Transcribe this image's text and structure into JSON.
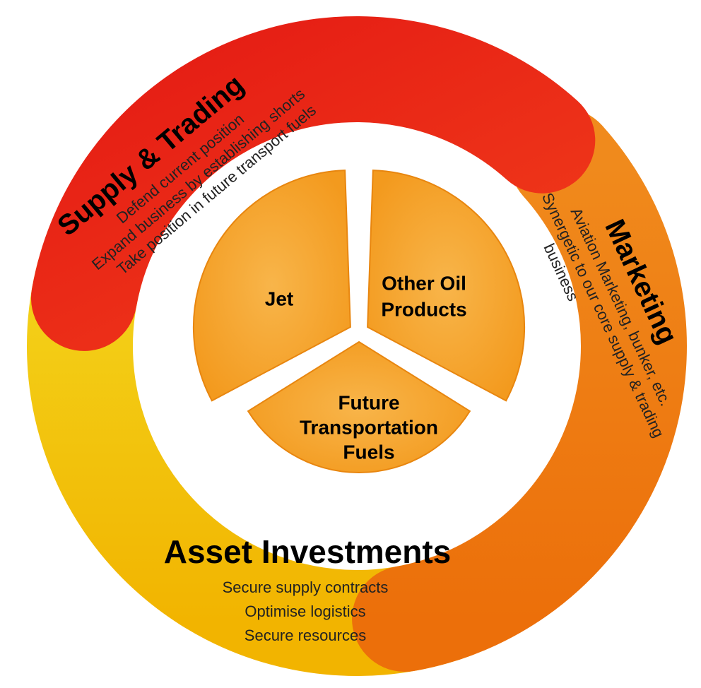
{
  "supply_trading": {
    "title": "Supply & Trading",
    "lines": [
      "Defend current position",
      "Expand business by establishing shorts",
      "Take position in future transport fuels"
    ]
  },
  "marketing": {
    "title": "Marketing",
    "lines": [
      "Aviation Marketing, bunker, etc.",
      "Synergetic to our core supply & trading",
      "business"
    ]
  },
  "asset_investments": {
    "title": "Asset Investments",
    "lines": [
      "Secure supply contracts",
      "Optimise logistics",
      "Secure resources"
    ]
  },
  "center": [
    {
      "lines": [
        "Jet"
      ]
    },
    {
      "lines": [
        "Other Oil",
        "Products"
      ]
    },
    {
      "lines": [
        "Future",
        "Transportation",
        "Fuels"
      ]
    }
  ]
}
